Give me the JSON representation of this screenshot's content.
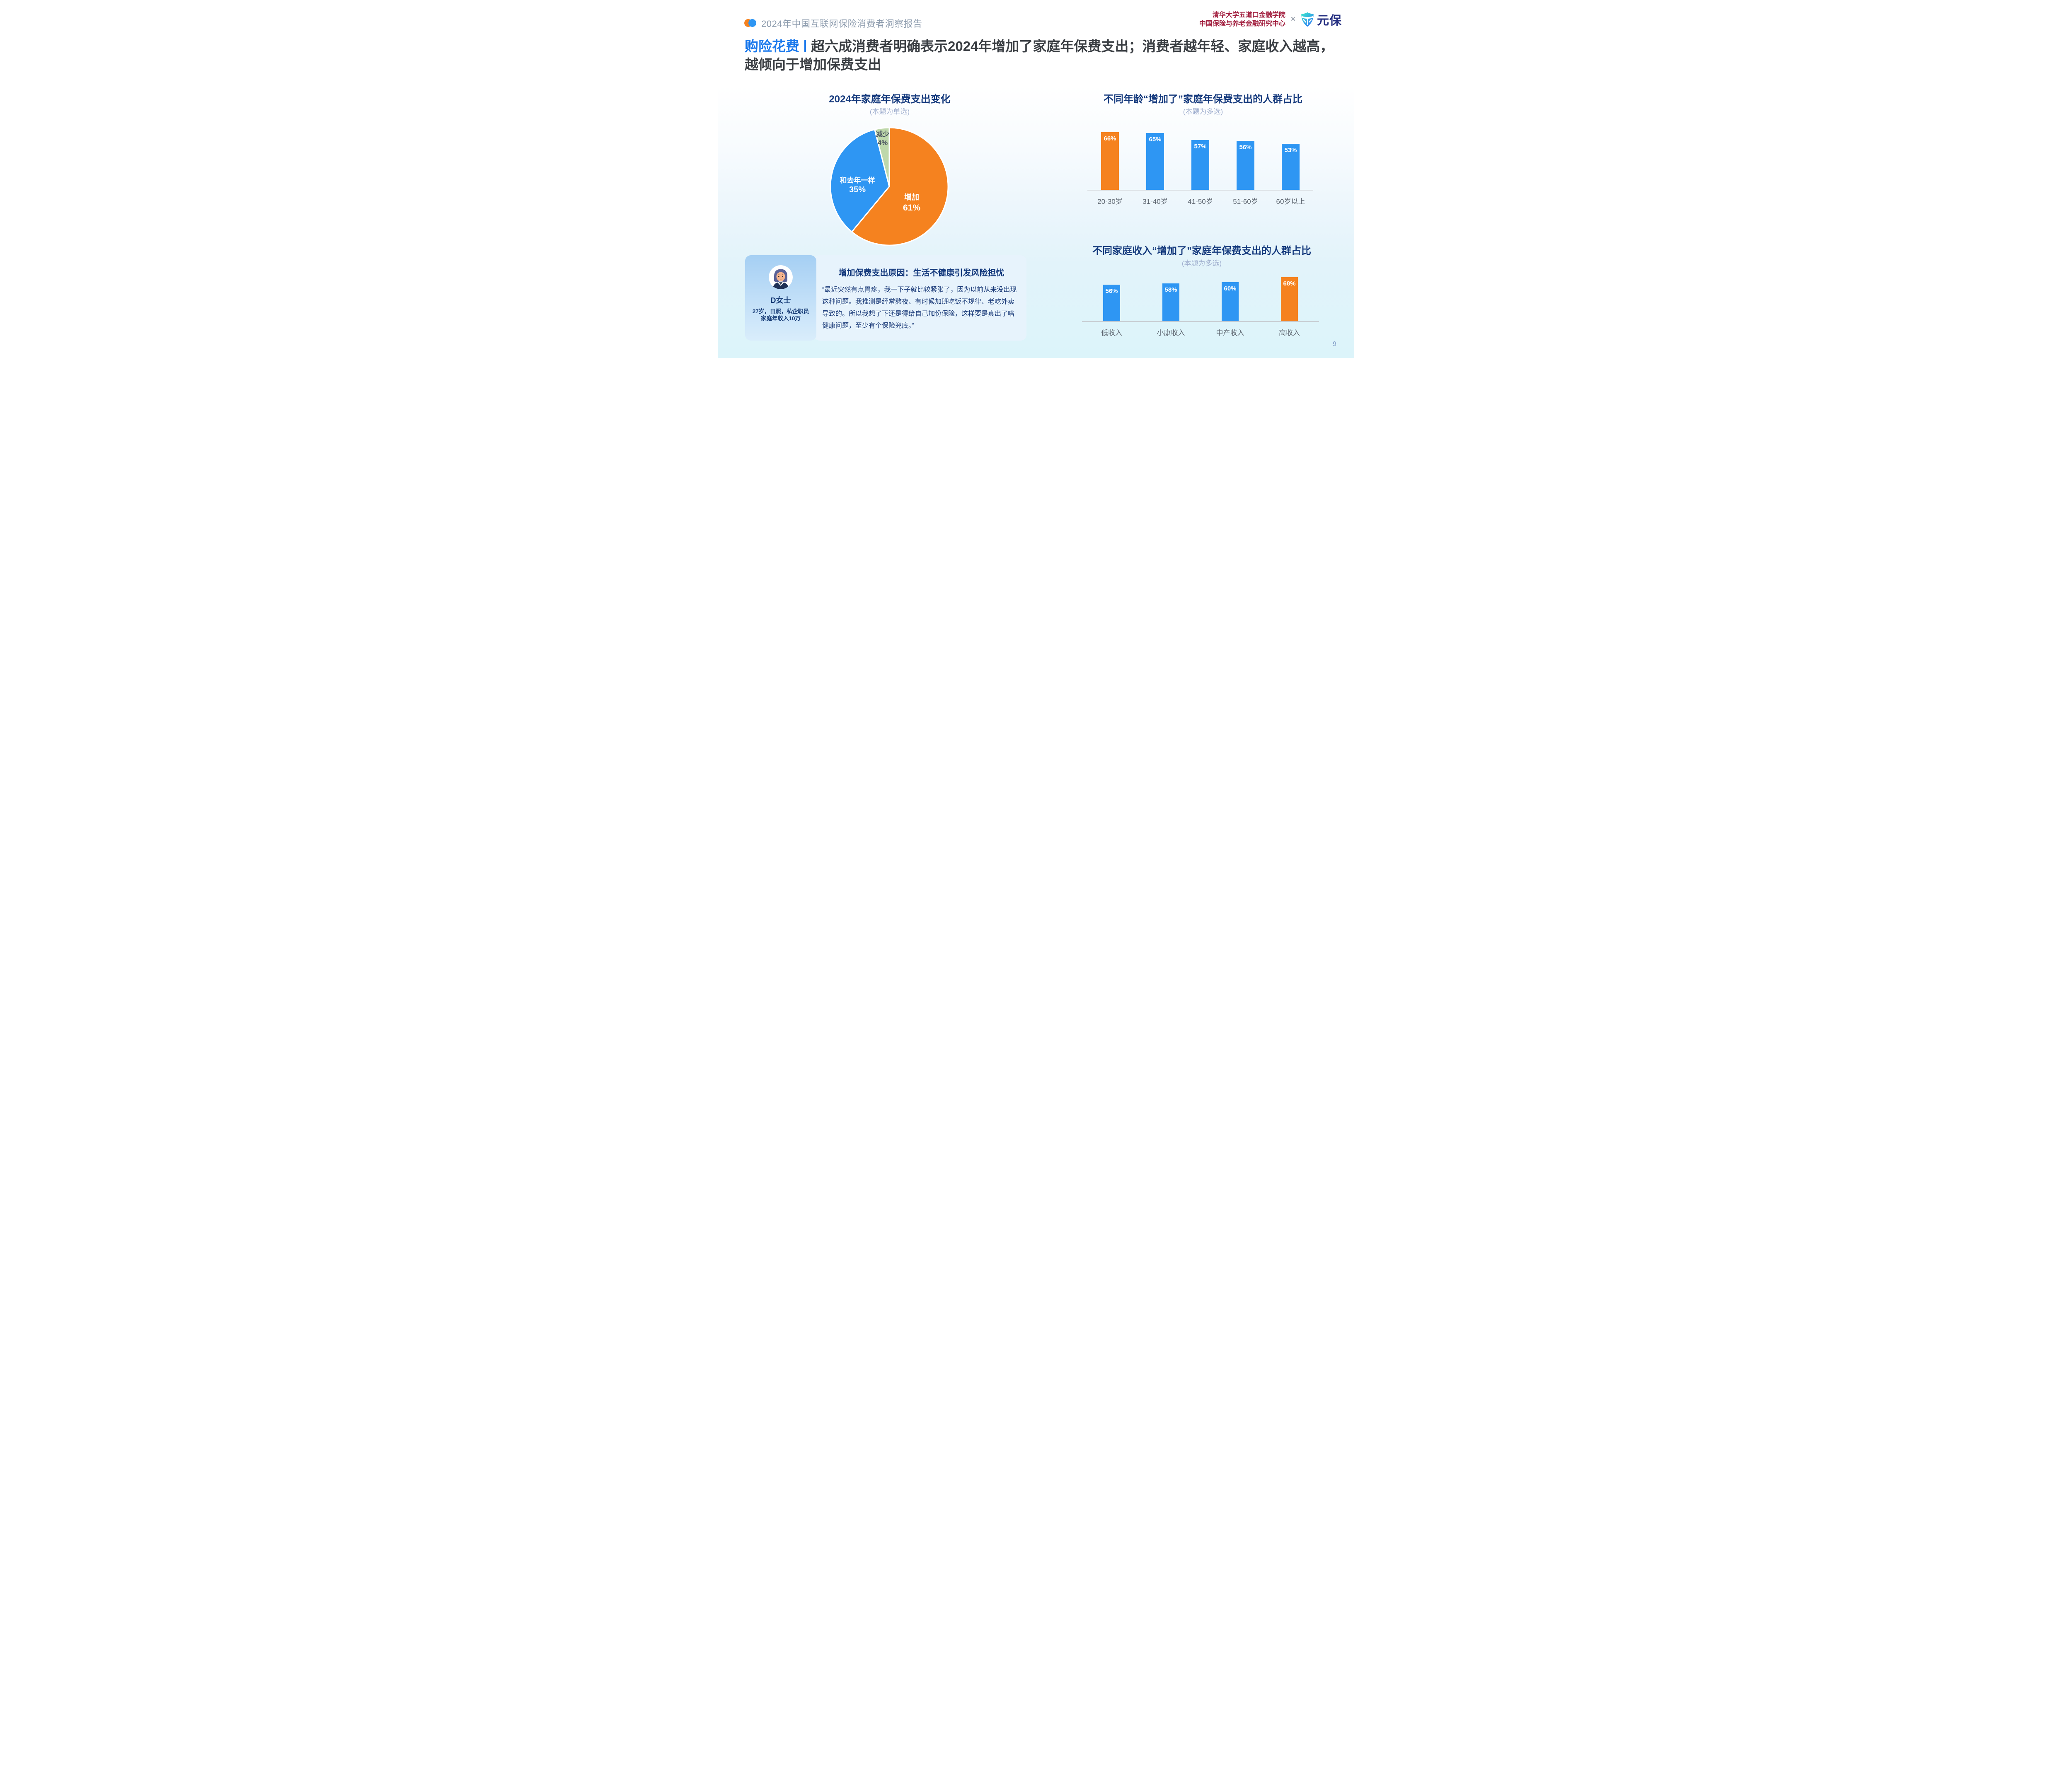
{
  "header": {
    "report_title": "2024年中国互联网保险消费者洞察报告",
    "org_line1": "清华大学五道口金融学院",
    "org_line2": "中国保险与养老金融研究中心",
    "cross": "×",
    "brand_name": "元保",
    "icons": {
      "left_logo": "two-overlapping-dots-icon",
      "brand_logo": "shield-icon"
    }
  },
  "title": {
    "tag": "购险花费",
    "line1_rest": "超六成消费者明确表示2024年增加了家庭年保费支出；消费者越年轻、家庭收入越高，",
    "line2": "越倾向于增加保费支出"
  },
  "colors": {
    "accent_blue": "#1B79EC",
    "bar_blue": "#2E96F3",
    "bar_orange": "#F5821F",
    "pie_green": "#BED8AB",
    "title_navy": "#153A7D",
    "org_crimson": "#A21F3F"
  },
  "chart_data": [
    {
      "id": "premium-change-pie",
      "type": "pie",
      "title": "2024年家庭年保费支出变化",
      "subtitle": "(本题为单选)",
      "start_angle_deg": 0,
      "direction": "clockwise",
      "slices": [
        {
          "label": "增加",
          "value": 61,
          "color": "#F5821F",
          "label_color": "#FFFFFF"
        },
        {
          "label": "和去年一样",
          "value": 35,
          "color": "#2E96F3",
          "label_color": "#FFFFFF"
        },
        {
          "label": "减少",
          "value": 4,
          "color": "#BED8AB",
          "label_color": "#4A5360"
        }
      ]
    },
    {
      "id": "age-bar",
      "type": "bar",
      "title": "不同年龄“增加了”家庭年保费支出的人群占比",
      "subtitle": "(本题为多选)",
      "categories": [
        "20-30岁",
        "31-40岁",
        "41-50岁",
        "51-60岁",
        "60岁以上"
      ],
      "values": [
        66,
        65,
        57,
        56,
        53
      ],
      "unit": "%",
      "highlight_index": 0,
      "bar_color": "#2E96F3",
      "highlight_color": "#F5821F",
      "ylim": [
        0,
        70
      ],
      "value_labels": "inside-top",
      "grid": false,
      "legend": false
    },
    {
      "id": "income-bar",
      "type": "bar",
      "title": "不同家庭收入“增加了”家庭年保费支出的人群占比",
      "subtitle": "(本题为多选)",
      "categories": [
        "低收入",
        "小康收入",
        "中产收入",
        "高收入"
      ],
      "values": [
        56,
        58,
        60,
        68
      ],
      "unit": "%",
      "highlight_index": 3,
      "bar_color": "#2E96F3",
      "highlight_color": "#F5821F",
      "ylim": [
        0,
        75
      ],
      "value_labels": "inside-top",
      "grid": false,
      "legend": false
    }
  ],
  "profile_card": {
    "name": "D女士",
    "detail_line1": "27岁，日照，私企职员",
    "detail_line2": "家庭年收入10万"
  },
  "quote_card": {
    "title": "增加保费支出原因：生活不健康引发风险担忧",
    "body": "“最近突然有点胃疼，我一下子就比较紧张了，因为以前从来没出现这种问题。我推测是经常熬夜、有时候加班吃饭不规律、老吃外卖导致的。所以我想了下还是得给自己加份保险，这样要是真出了啥健康问题，至少有个保险兜底。”"
  },
  "page_number": "9"
}
